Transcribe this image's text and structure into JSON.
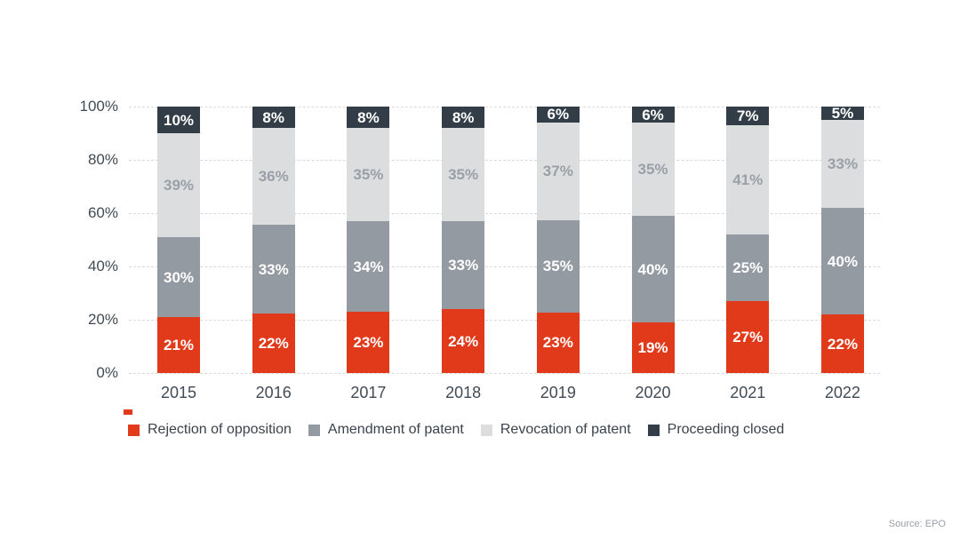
{
  "page": {
    "background": "#ffffff",
    "accent": "#e13a1a"
  },
  "chart_data": {
    "type": "bar",
    "stacked": true,
    "title": "",
    "categories": [
      "2015",
      "2016",
      "2017",
      "2018",
      "2019",
      "2020",
      "2021",
      "2022"
    ],
    "series": [
      {
        "name": "Rejection of opposition",
        "color": "#e13a1a",
        "label_color": "#ffffff",
        "values": [
          21,
          22,
          23,
          24,
          23,
          19,
          27,
          22
        ]
      },
      {
        "name": "Amendment of patent",
        "color": "#949aa2",
        "label_color": "#ffffff",
        "values": [
          30,
          33,
          34,
          33,
          35,
          40,
          25,
          40
        ]
      },
      {
        "name": "Revocation of patent",
        "color": "#dcddde",
        "label_color": "#99a0a8",
        "values": [
          39,
          36,
          35,
          35,
          37,
          35,
          41,
          33
        ]
      },
      {
        "name": "Proceeding closed",
        "color": "#323d47",
        "label_color": "#ffffff",
        "values": [
          10,
          8,
          8,
          8,
          6,
          6,
          7,
          5
        ]
      }
    ],
    "y_ticks": [
      "0%",
      "20%",
      "40%",
      "60%",
      "80%",
      "100%"
    ],
    "ylim": [
      0,
      100
    ],
    "value_suffix": "%",
    "grid": "horizontal-dashed",
    "legend_position": "bottom"
  },
  "source": {
    "label": "Source: EPO"
  }
}
